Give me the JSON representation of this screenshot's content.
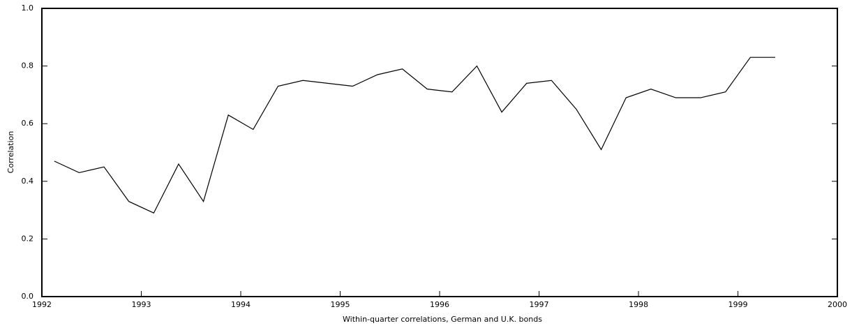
{
  "chart_data": {
    "type": "line",
    "xlabel": "Within-quarter correlations, German and U.K. bonds",
    "ylabel": "Correlation",
    "x": [
      1992.125,
      1992.375,
      1992.625,
      1992.875,
      1993.125,
      1993.375,
      1993.625,
      1993.875,
      1994.125,
      1994.375,
      1994.625,
      1994.875,
      1995.125,
      1995.375,
      1995.625,
      1995.875,
      1996.125,
      1996.375,
      1996.625,
      1996.875,
      1997.125,
      1997.375,
      1997.625,
      1997.875,
      1998.125,
      1998.375,
      1998.625,
      1998.875,
      1999.125,
      1999.375
    ],
    "series": [
      {
        "name": "Correlation",
        "color": "#000000",
        "values": [
          0.47,
          0.43,
          0.45,
          0.33,
          0.29,
          0.46,
          0.33,
          0.63,
          0.58,
          0.73,
          0.75,
          0.74,
          0.73,
          0.77,
          0.79,
          0.72,
          0.71,
          0.8,
          0.64,
          0.74,
          0.75,
          0.65,
          0.51,
          0.69,
          0.72,
          0.69,
          0.69,
          0.71,
          0.83,
          0.83
        ]
      }
    ],
    "xlim": [
      1992,
      2000
    ],
    "xticks": [
      1992,
      1993,
      1994,
      1995,
      1996,
      1997,
      1998,
      1999,
      2000
    ],
    "ylim": [
      0,
      1
    ],
    "yticks": [
      {
        "value": 0,
        "label": "0.0"
      },
      0.2,
      0.4,
      0.6,
      0.8,
      {
        "value": 1,
        "label": "1.0"
      }
    ]
  }
}
